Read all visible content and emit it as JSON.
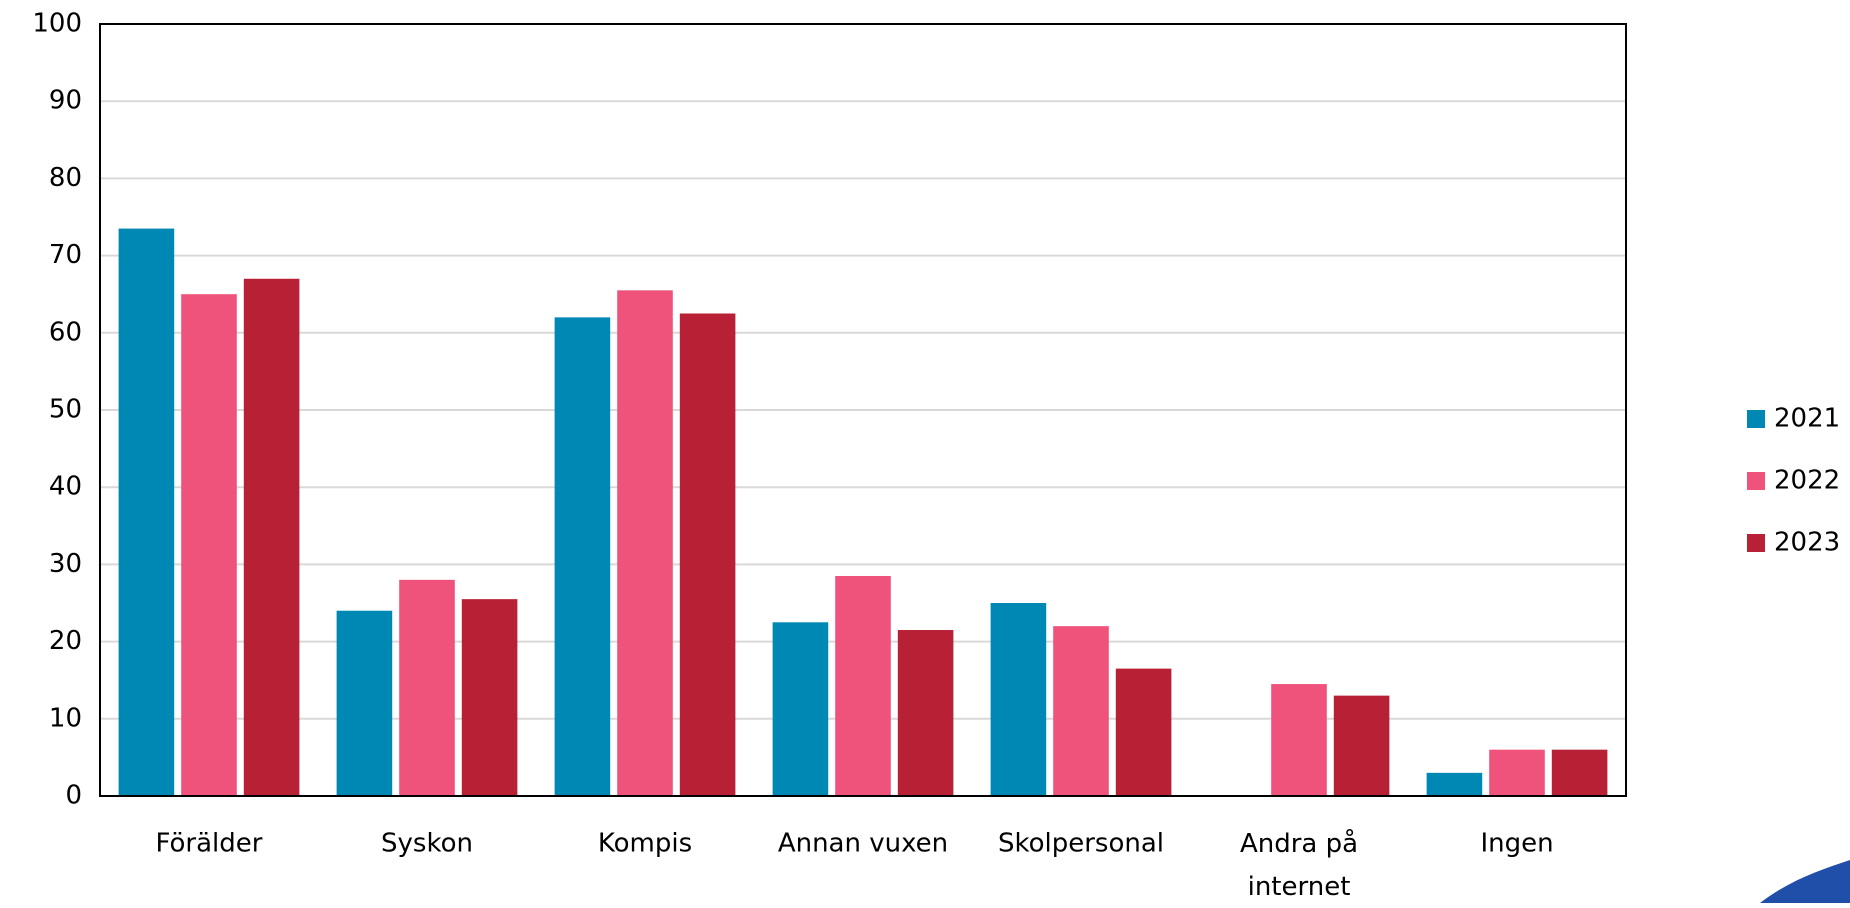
{
  "chart_data": {
    "type": "bar",
    "categories": [
      "Förälder",
      "Syskon",
      "Kompis",
      "Annan vuxen",
      "Skolpersonal",
      "Andra på internet",
      "Ingen"
    ],
    "series": [
      {
        "name": "2021",
        "color": "#0088b4",
        "values": [
          73.5,
          24,
          62,
          22.5,
          25,
          null,
          3
        ]
      },
      {
        "name": "2022",
        "color": "#ef527a",
        "values": [
          65,
          28,
          65.5,
          28.5,
          22,
          14.5,
          6
        ]
      },
      {
        "name": "2023",
        "color": "#b82035",
        "values": [
          67,
          25.5,
          62.5,
          21.5,
          16.5,
          13,
          6
        ]
      }
    ],
    "ylim": [
      0,
      100
    ],
    "yticks": [
      0,
      10,
      20,
      30,
      40,
      50,
      60,
      70,
      80,
      90,
      100
    ],
    "grid": true,
    "legend": "right"
  }
}
